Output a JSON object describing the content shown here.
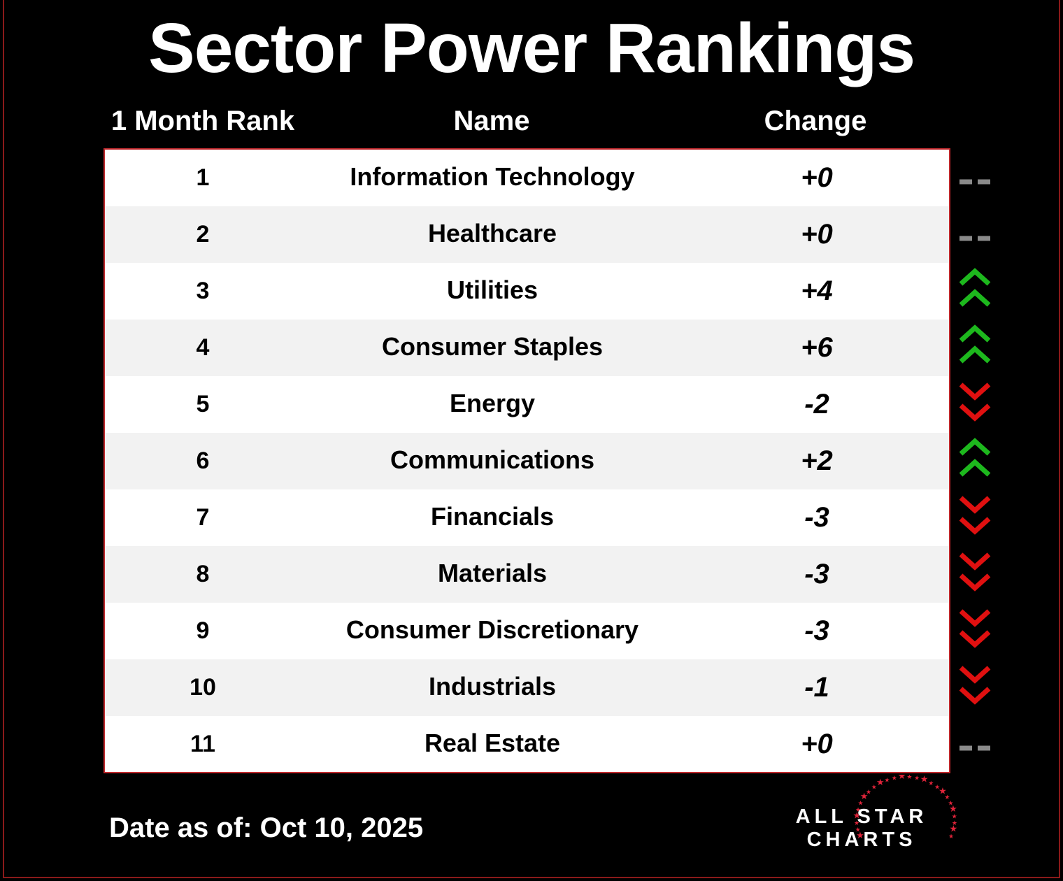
{
  "title": "Sector Power Rankings",
  "headers": {
    "rank": "1 Month Rank",
    "name": "Name",
    "change": "Change"
  },
  "rows": [
    {
      "rank": "1",
      "name": "Information Technology",
      "change": "+0",
      "trend": "flat"
    },
    {
      "rank": "2",
      "name": "Healthcare",
      "change": "+0",
      "trend": "flat"
    },
    {
      "rank": "3",
      "name": "Utilities",
      "change": "+4",
      "trend": "up"
    },
    {
      "rank": "4",
      "name": "Consumer Staples",
      "change": "+6",
      "trend": "up"
    },
    {
      "rank": "5",
      "name": "Energy",
      "change": "-2",
      "trend": "down"
    },
    {
      "rank": "6",
      "name": "Communications",
      "change": "+2",
      "trend": "up"
    },
    {
      "rank": "7",
      "name": "Financials",
      "change": "-3",
      "trend": "down"
    },
    {
      "rank": "8",
      "name": "Materials",
      "change": "-3",
      "trend": "down"
    },
    {
      "rank": "9",
      "name": "Consumer Discretionary",
      "change": "-3",
      "trend": "down"
    },
    {
      "rank": "10",
      "name": "Industrials",
      "change": "-1",
      "trend": "down"
    },
    {
      "rank": "11",
      "name": "Real Estate",
      "change": "+0",
      "trend": "flat"
    }
  ],
  "footer": {
    "date": "Date as of: Oct 10, 2025"
  },
  "logo": {
    "line1": "ALL STAR",
    "line2": "CHARTS"
  },
  "colors": {
    "up": "#1db81d",
    "down": "#e01010",
    "flat": "#8a8a8a",
    "accent": "#c0282c"
  }
}
